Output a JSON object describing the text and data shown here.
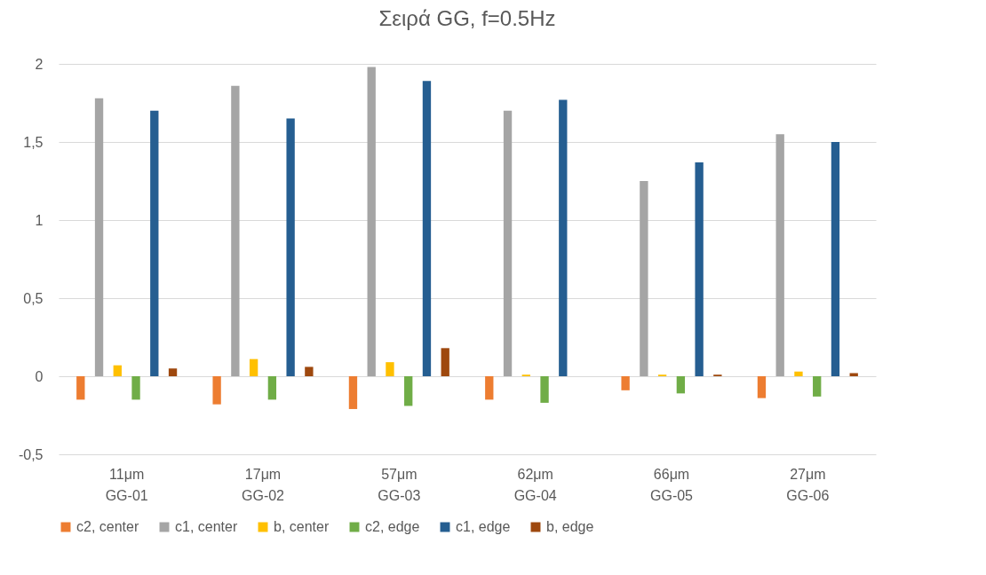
{
  "chart_data": {
    "type": "bar",
    "title": "Σειρά GG, f=0.5Hz",
    "categories": [
      "11μm\nGG-01",
      "17μm\nGG-02",
      "57μm\nGG-03",
      "62μm\nGG-04",
      "66μm\nGG-05",
      "27μm\nGG-06"
    ],
    "series": [
      {
        "name": "c2, center",
        "color": "#ed7d31",
        "values": [
          -0.15,
          -0.18,
          -0.21,
          -0.15,
          -0.09,
          -0.14
        ]
      },
      {
        "name": "c1, center",
        "color": "#a5a5a5",
        "values": [
          1.78,
          1.86,
          1.98,
          1.7,
          1.25,
          1.55
        ]
      },
      {
        "name": "b, center",
        "color": "#ffc000",
        "values": [
          0.07,
          0.11,
          0.09,
          0.01,
          0.01,
          0.03
        ]
      },
      {
        "name": "c2, edge",
        "color": "#70ad47",
        "values": [
          -0.15,
          -0.15,
          -0.19,
          -0.17,
          -0.11,
          -0.13
        ]
      },
      {
        "name": "c1, edge",
        "color": "#255e91",
        "values": [
          1.7,
          1.65,
          1.89,
          1.77,
          1.37,
          1.5
        ]
      },
      {
        "name": "b, edge",
        "color": "#9e480e",
        "values": [
          0.05,
          0.06,
          0.18,
          0.0,
          0.01,
          0.02
        ]
      }
    ],
    "ylim": [
      -0.5,
      2
    ],
    "yticks": [
      {
        "value": -0.5,
        "label": "-0,5"
      },
      0,
      {
        "value": 0.5,
        "label": "0,5"
      },
      1,
      {
        "value": 1.5,
        "label": "1,5"
      },
      2
    ],
    "grid": "y",
    "legend": "bottom"
  }
}
